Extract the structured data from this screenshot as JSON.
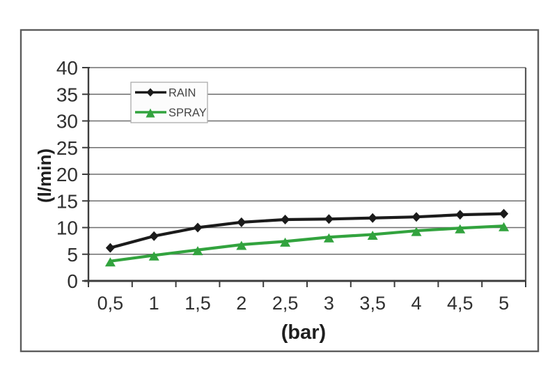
{
  "chart_data": {
    "type": "line",
    "title": "",
    "xlabel": "(bar)",
    "ylabel": "(l/min)",
    "categories": [
      "0,5",
      "1",
      "1,5",
      "2",
      "2,5",
      "3",
      "3,5",
      "4",
      "4,5",
      "5"
    ],
    "series": [
      {
        "name": "RAIN",
        "color": "#1b1b1b",
        "marker": "diamond",
        "values": [
          6.2,
          8.4,
          10,
          11,
          11.5,
          11.6,
          11.8,
          12,
          12.4,
          12.6
        ]
      },
      {
        "name": "SPRAY",
        "color": "#32a33e",
        "marker": "triangle-up",
        "values": [
          3.7,
          4.8,
          5.8,
          6.8,
          7.4,
          8.2,
          8.7,
          9.4,
          9.9,
          10.3
        ]
      }
    ],
    "ylim": [
      0,
      40
    ],
    "ytick_step": 5,
    "ytick_labels": [
      "0",
      "5",
      "10",
      "15",
      "20",
      "25",
      "30",
      "35",
      "40"
    ],
    "grid": true,
    "legend_position": "top-left",
    "decimal_separator": ","
  },
  "style_colors": {
    "gridline": "#6e6e6e",
    "axis": "#3c3c3c",
    "frame_border": "#5c5c5c",
    "legend_border": "#ababab",
    "legend_background": "#fcfcfc",
    "plot_background": "#ffffff"
  }
}
